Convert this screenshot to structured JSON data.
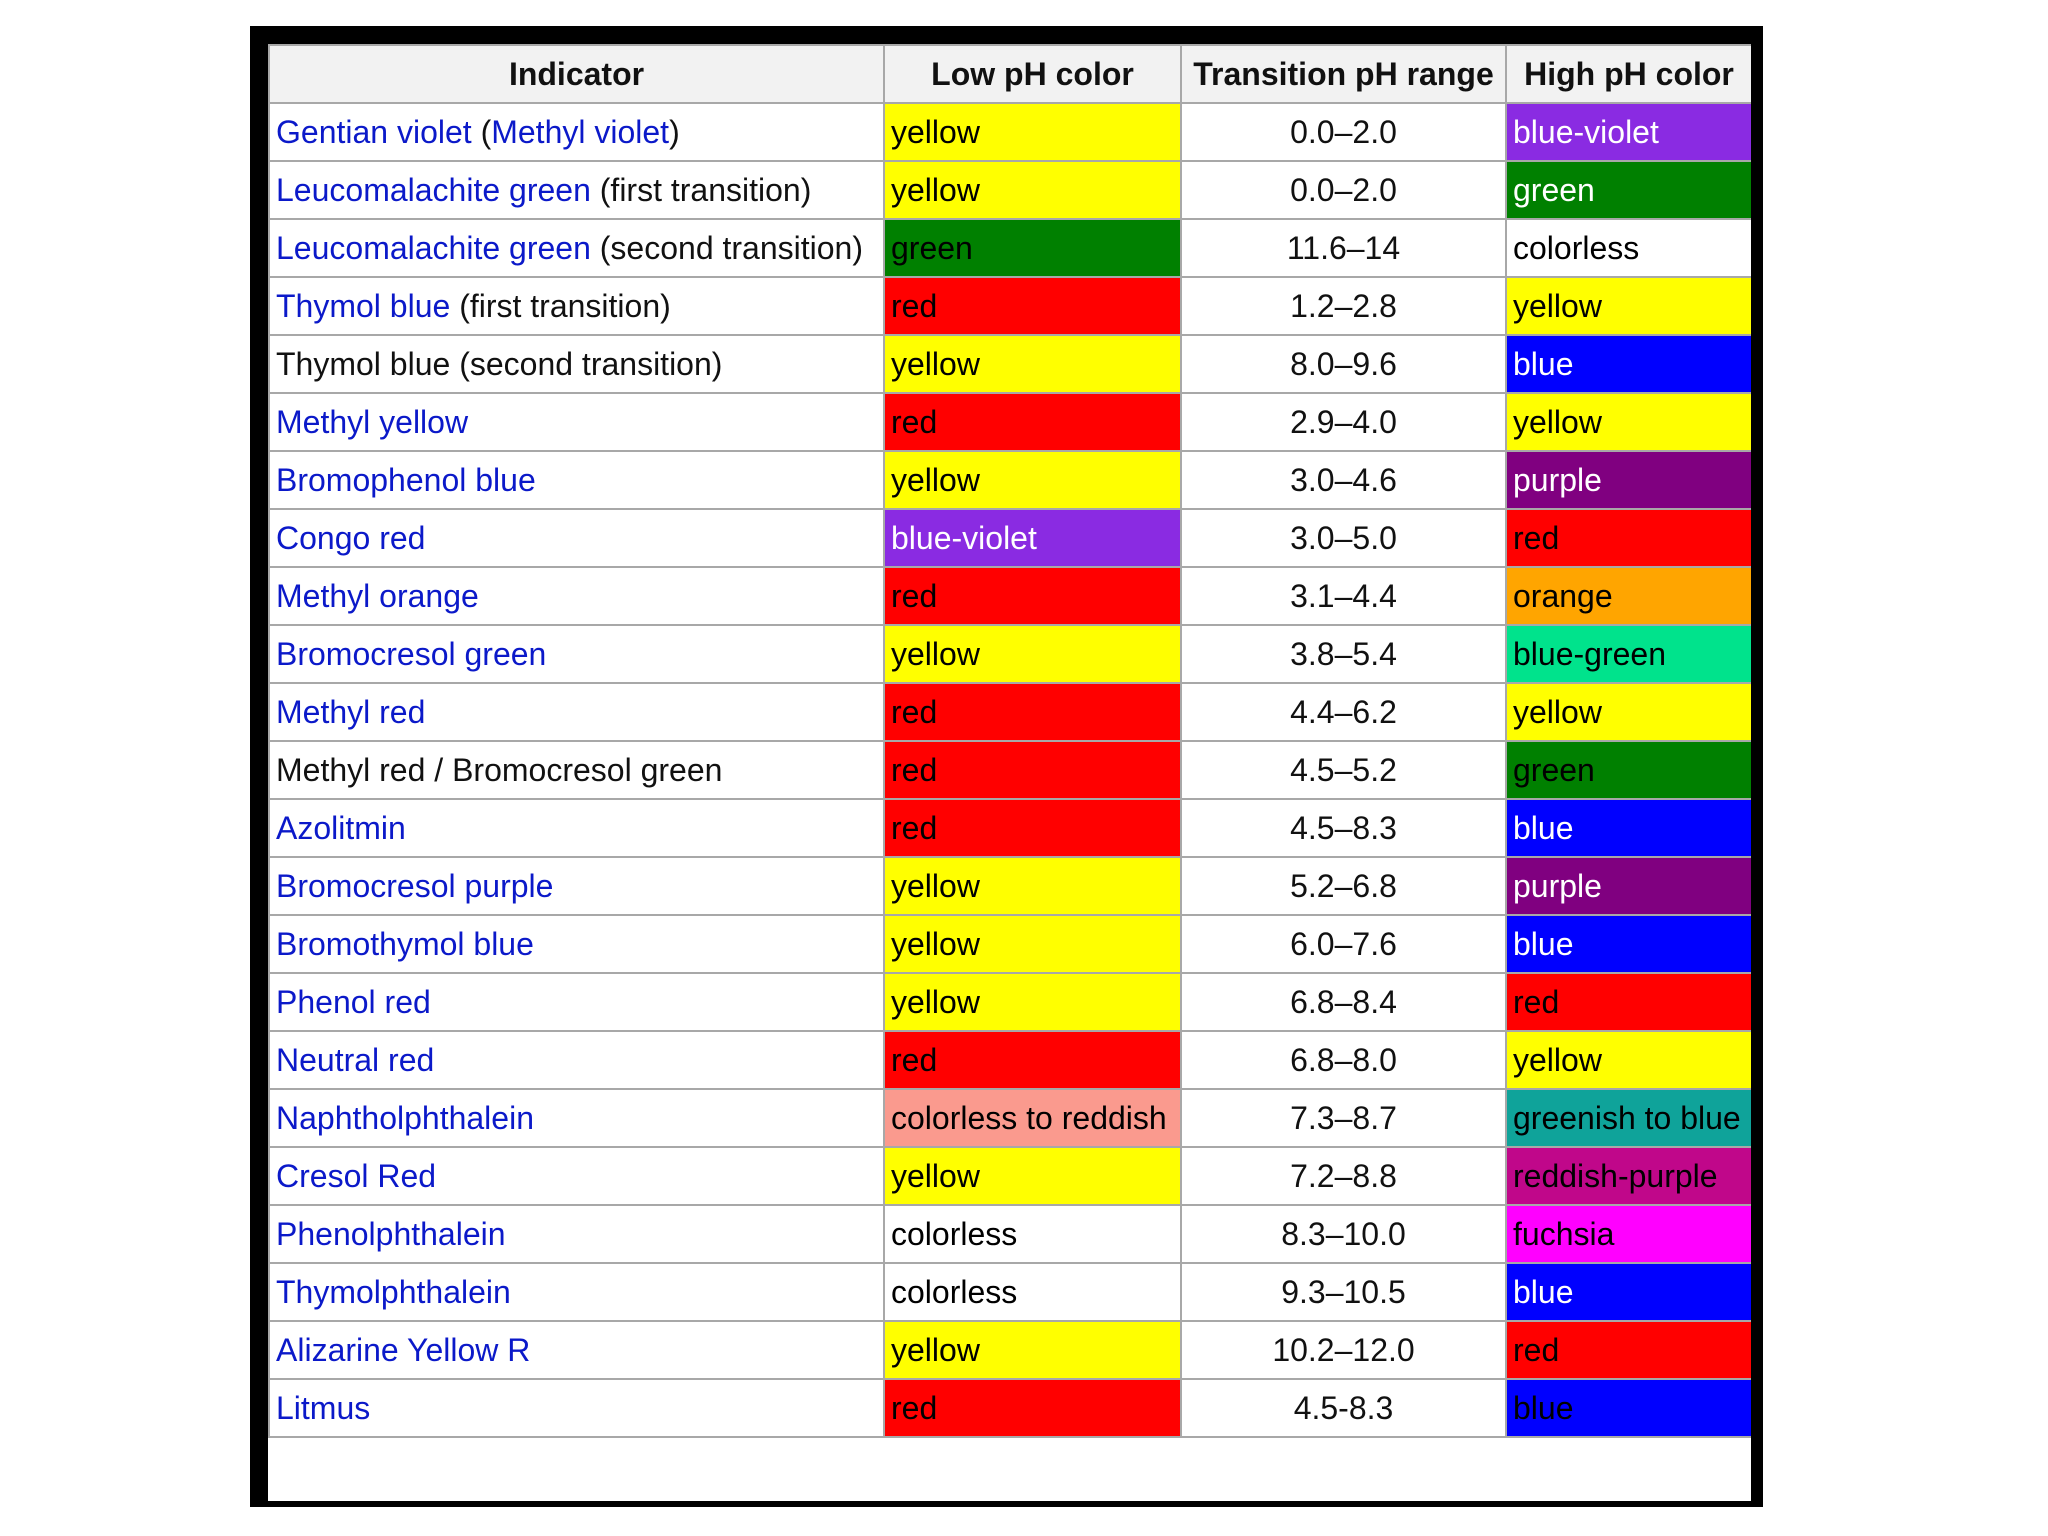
{
  "table": {
    "headers": {
      "indicator": "Indicator",
      "low": "Low pH color",
      "range": "Transition pH range",
      "high": "High pH color"
    },
    "rows": [
      {
        "indicator": [
          {
            "text": "Gentian violet",
            "link": true
          },
          {
            "text": " (",
            "link": false
          },
          {
            "text": "Methyl violet",
            "link": true
          },
          {
            "text": ")",
            "link": false
          }
        ],
        "low": {
          "text": "yellow",
          "bg": "#ffff00",
          "fg": "#000000"
        },
        "range": "0.0–2.0",
        "high": {
          "text": "blue-violet",
          "bg": "#8a2be2",
          "fg": "#ffffff"
        }
      },
      {
        "indicator": [
          {
            "text": "Leucomalachite green",
            "link": true
          },
          {
            "text": " (first transition)",
            "link": false
          }
        ],
        "low": {
          "text": "yellow",
          "bg": "#ffff00",
          "fg": "#000000"
        },
        "range": "0.0–2.0",
        "high": {
          "text": "green",
          "bg": "#008000",
          "fg": "#ffffff"
        }
      },
      {
        "indicator": [
          {
            "text": "Leucomalachite green",
            "link": true
          },
          {
            "text": " (second transition)",
            "link": false
          }
        ],
        "low": {
          "text": "green",
          "bg": "#008000",
          "fg": "#000000"
        },
        "range": "11.6–14",
        "high": {
          "text": "colorless",
          "bg": "#ffffff",
          "fg": "#000000"
        }
      },
      {
        "indicator": [
          {
            "text": "Thymol blue",
            "link": true
          },
          {
            "text": " (first transition)",
            "link": false
          }
        ],
        "low": {
          "text": "red",
          "bg": "#ff0000",
          "fg": "#000000"
        },
        "range": "1.2–2.8",
        "high": {
          "text": "yellow",
          "bg": "#ffff00",
          "fg": "#000000"
        }
      },
      {
        "indicator": [
          {
            "text": "Thymol blue (second transition)",
            "link": false
          }
        ],
        "low": {
          "text": "yellow",
          "bg": "#ffff00",
          "fg": "#000000"
        },
        "range": "8.0–9.6",
        "high": {
          "text": "blue",
          "bg": "#0000ff",
          "fg": "#ffffff"
        }
      },
      {
        "indicator": [
          {
            "text": "Methyl yellow",
            "link": true
          }
        ],
        "low": {
          "text": "red",
          "bg": "#ff0000",
          "fg": "#000000"
        },
        "range": "2.9–4.0",
        "high": {
          "text": "yellow",
          "bg": "#ffff00",
          "fg": "#000000"
        }
      },
      {
        "indicator": [
          {
            "text": "Bromophenol blue",
            "link": true
          }
        ],
        "low": {
          "text": "yellow",
          "bg": "#ffff00",
          "fg": "#000000"
        },
        "range": "3.0–4.6",
        "high": {
          "text": "purple",
          "bg": "#800080",
          "fg": "#ffffff"
        }
      },
      {
        "indicator": [
          {
            "text": "Congo red",
            "link": true
          }
        ],
        "low": {
          "text": "blue-violet",
          "bg": "#8a2be2",
          "fg": "#ffffff"
        },
        "range": "3.0–5.0",
        "high": {
          "text": "red",
          "bg": "#ff0000",
          "fg": "#000000"
        }
      },
      {
        "indicator": [
          {
            "text": "Methyl orange",
            "link": true
          }
        ],
        "low": {
          "text": "red",
          "bg": "#ff0000",
          "fg": "#000000"
        },
        "range": "3.1–4.4",
        "high": {
          "text": "orange",
          "bg": "#ffa500",
          "fg": "#000000"
        }
      },
      {
        "indicator": [
          {
            "text": "Bromocresol green",
            "link": true
          }
        ],
        "low": {
          "text": "yellow",
          "bg": "#ffff00",
          "fg": "#000000"
        },
        "range": "3.8–5.4",
        "high": {
          "text": "blue-green",
          "bg": "#00e38c",
          "fg": "#000000"
        }
      },
      {
        "indicator": [
          {
            "text": "Methyl red",
            "link": true
          }
        ],
        "low": {
          "text": "red",
          "bg": "#ff0000",
          "fg": "#000000"
        },
        "range": "4.4–6.2",
        "high": {
          "text": "yellow",
          "bg": "#ffff00",
          "fg": "#000000"
        }
      },
      {
        "indicator": [
          {
            "text": "Methyl red / Bromocresol green",
            "link": false
          }
        ],
        "low": {
          "text": "red",
          "bg": "#ff0000",
          "fg": "#000000"
        },
        "range": "4.5–5.2",
        "high": {
          "text": "green",
          "bg": "#008000",
          "fg": "#000000"
        }
      },
      {
        "indicator": [
          {
            "text": "Azolitmin",
            "link": true
          }
        ],
        "low": {
          "text": "red",
          "bg": "#ff0000",
          "fg": "#000000"
        },
        "range": "4.5–8.3",
        "high": {
          "text": "blue",
          "bg": "#0000ff",
          "fg": "#ffffff"
        }
      },
      {
        "indicator": [
          {
            "text": "Bromocresol purple",
            "link": true
          }
        ],
        "low": {
          "text": "yellow",
          "bg": "#ffff00",
          "fg": "#000000"
        },
        "range": "5.2–6.8",
        "high": {
          "text": "purple",
          "bg": "#800080",
          "fg": "#ffffff"
        }
      },
      {
        "indicator": [
          {
            "text": "Bromothymol blue",
            "link": true
          }
        ],
        "low": {
          "text": "yellow",
          "bg": "#ffff00",
          "fg": "#000000"
        },
        "range": "6.0–7.6",
        "high": {
          "text": "blue",
          "bg": "#0000ff",
          "fg": "#ffffff"
        }
      },
      {
        "indicator": [
          {
            "text": "Phenol red",
            "link": true
          }
        ],
        "low": {
          "text": "yellow",
          "bg": "#ffff00",
          "fg": "#000000"
        },
        "range": "6.8–8.4",
        "high": {
          "text": "red",
          "bg": "#ff0000",
          "fg": "#000000"
        }
      },
      {
        "indicator": [
          {
            "text": "Neutral red",
            "link": true
          }
        ],
        "low": {
          "text": "red",
          "bg": "#ff0000",
          "fg": "#000000"
        },
        "range": "6.8–8.0",
        "high": {
          "text": "yellow",
          "bg": "#ffff00",
          "fg": "#000000"
        }
      },
      {
        "indicator": [
          {
            "text": "Naphtholphthalein",
            "link": true
          }
        ],
        "low": {
          "text": "colorless to reddish",
          "bg": "#fa9a8e",
          "fg": "#000000"
        },
        "range": "7.3–8.7",
        "high": {
          "text": "greenish to blue",
          "bg": "#0fa39a",
          "fg": "#000000"
        }
      },
      {
        "indicator": [
          {
            "text": "Cresol Red",
            "link": true
          }
        ],
        "low": {
          "text": "yellow",
          "bg": "#ffff00",
          "fg": "#000000"
        },
        "range": "7.2–8.8",
        "high": {
          "text": "reddish-purple",
          "bg": "#c0078a",
          "fg": "#000000"
        }
      },
      {
        "indicator": [
          {
            "text": "Phenolphthalein",
            "link": true
          }
        ],
        "low": {
          "text": "colorless",
          "bg": "#ffffff",
          "fg": "#000000"
        },
        "range": "8.3–10.0",
        "high": {
          "text": "fuchsia",
          "bg": "#ff00ff",
          "fg": "#000000"
        }
      },
      {
        "indicator": [
          {
            "text": "Thymolphthalein",
            "link": true
          }
        ],
        "low": {
          "text": "colorless",
          "bg": "#ffffff",
          "fg": "#000000"
        },
        "range": "9.3–10.5",
        "high": {
          "text": "blue",
          "bg": "#0000ff",
          "fg": "#ffffff"
        }
      },
      {
        "indicator": [
          {
            "text": "Alizarine Yellow R",
            "link": true
          }
        ],
        "low": {
          "text": "yellow",
          "bg": "#ffff00",
          "fg": "#000000"
        },
        "range": "10.2–12.0",
        "high": {
          "text": "red",
          "bg": "#ff0000",
          "fg": "#000000"
        }
      },
      {
        "indicator": [
          {
            "text": "Litmus",
            "link": true
          }
        ],
        "low": {
          "text": "red",
          "bg": "#ff0000",
          "fg": "#000000"
        },
        "range": "4.5-8.3",
        "high": {
          "text": "blue",
          "bg": "#0000ff",
          "fg": "#000000"
        }
      }
    ]
  }
}
